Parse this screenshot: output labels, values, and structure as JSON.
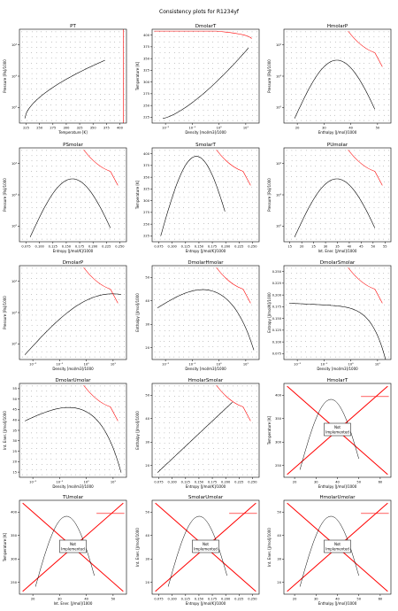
{
  "title": "Consistency plots for R1234yf",
  "not_implemented_text": [
    "Not",
    "Implemented"
  ],
  "colors": {
    "axis": "#000000",
    "data": "#000000",
    "saturation": "#000000",
    "boundary": "#ff0000",
    "cross": "#ff0000"
  },
  "chart_data": [
    {
      "type": "scatter",
      "title": "PT",
      "xlabel": "Temperature [K]",
      "ylabel": "Pressure [Pa]/1000",
      "xticks": [
        "225",
        "250",
        "275",
        "300",
        "325",
        "350",
        "375",
        "400"
      ],
      "yticks": [
        "10²",
        "10³",
        "10⁴"
      ],
      "ylog": true,
      "implemented": true,
      "series": [
        "grid points",
        "saturation curve",
        "boundary"
      ]
    },
    {
      "type": "scatter",
      "title": "DmolarT",
      "xlabel": "Density [mol/m3]/1000",
      "ylabel": "Temperature [K]",
      "xticks": [
        "10⁻²",
        "10⁻¹",
        "10⁰",
        "10¹"
      ],
      "yticks": [
        "225",
        "250",
        "275",
        "300",
        "325",
        "350",
        "375",
        "400"
      ],
      "xlog": true,
      "implemented": true,
      "series": [
        "grid points",
        "saturation curve",
        "boundary"
      ]
    },
    {
      "type": "scatter",
      "title": "HmolarP",
      "xlabel": "Enthalpy [J/mol]/1000",
      "ylabel": "Pressure [Pa]/1000",
      "xticks": [
        "20",
        "30",
        "40",
        "50"
      ],
      "yticks": [
        "10²",
        "10³",
        "10⁴"
      ],
      "ylog": true,
      "implemented": true,
      "series": [
        "grid points",
        "saturation curve",
        "boundary"
      ]
    },
    {
      "type": "scatter",
      "title": "PSmolar",
      "xlabel": "Entropy [J/mol/K]/1000",
      "ylabel": "Pressure [Pa]/1000",
      "xticks": [
        "0.075",
        "0.100",
        "0.125",
        "0.150",
        "0.175",
        "0.200",
        "0.225",
        "0.250"
      ],
      "yticks": [
        "10²",
        "10³",
        "10⁴"
      ],
      "ylog": true,
      "implemented": true,
      "series": [
        "grid points",
        "saturation curve",
        "boundary"
      ]
    },
    {
      "type": "scatter",
      "title": "SmolarT",
      "xlabel": "Entropy [J/mol/K]/1000",
      "ylabel": "Temperature [K]",
      "xticks": [
        "0.075",
        "0.100",
        "0.125",
        "0.150",
        "0.175",
        "0.200",
        "0.225",
        "0.250"
      ],
      "yticks": [
        "225",
        "250",
        "275",
        "300",
        "325",
        "350",
        "375",
        "400"
      ],
      "implemented": true,
      "series": [
        "grid points",
        "saturation curve",
        "boundary"
      ]
    },
    {
      "type": "scatter",
      "title": "PUmolar",
      "xlabel": "Int. Ener. [J/mol]/1000",
      "ylabel": "Pressure [Pa]/1000",
      "xticks": [
        "15",
        "20",
        "25",
        "30",
        "35",
        "40",
        "45",
        "50",
        "55"
      ],
      "yticks": [
        "10²",
        "10³",
        "10⁴"
      ],
      "ylog": true,
      "implemented": true,
      "series": [
        "grid points",
        "saturation curve",
        "boundary"
      ]
    },
    {
      "type": "scatter",
      "title": "DmolarP",
      "xlabel": "Density [mol/m3]/1000",
      "ylabel": "Pressure [Pa]/1000",
      "xticks": [
        "10⁻²",
        "10⁻¹",
        "10⁰",
        "10¹"
      ],
      "yticks": [
        "10²",
        "10³",
        "10⁴"
      ],
      "xlog": true,
      "ylog": true,
      "implemented": true,
      "series": [
        "grid points",
        "saturation curve",
        "boundary"
      ]
    },
    {
      "type": "scatter",
      "title": "DmolarHmolar",
      "xlabel": "Density [mol/m3]/1000",
      "ylabel": "Enthalpy [J/mol]/1000",
      "xticks": [
        "10⁻²",
        "10⁻¹",
        "10⁰",
        "10¹"
      ],
      "yticks": [
        "20",
        "30",
        "40",
        "50"
      ],
      "xlog": true,
      "implemented": true,
      "series": [
        "grid points",
        "saturation curve",
        "boundary"
      ]
    },
    {
      "type": "scatter",
      "title": "DmolarSmolar",
      "xlabel": "Density [mol/m3]/1000",
      "ylabel": "Entropy [J/mol/K]/1000",
      "xticks": [
        "10⁻²",
        "10⁻¹",
        "10⁰",
        "10¹"
      ],
      "yticks": [
        "0.075",
        "0.100",
        "0.125",
        "0.150",
        "0.175",
        "0.200",
        "0.225",
        "0.250"
      ],
      "xlog": true,
      "implemented": true,
      "series": [
        "grid points",
        "saturation curve",
        "boundary"
      ]
    },
    {
      "type": "scatter",
      "title": "DmolarUmolar",
      "xlabel": "Density [mol/m3]/1000",
      "ylabel": "Int. Ener. [J/mol]/1000",
      "xticks": [
        "10⁻²",
        "10⁻¹",
        "10⁰",
        "10¹"
      ],
      "yticks": [
        "15",
        "20",
        "25",
        "30",
        "35",
        "40",
        "45",
        "50",
        "55"
      ],
      "xlog": true,
      "implemented": true,
      "series": [
        "grid points",
        "saturation curve",
        "boundary"
      ]
    },
    {
      "type": "scatter",
      "title": "HmolarSmolar",
      "xlabel": "Entropy [J/mol/K]/1000",
      "ylabel": "Enthalpy [J/mol]/1000",
      "xticks": [
        "0.075",
        "0.100",
        "0.125",
        "0.150",
        "0.175",
        "0.200",
        "0.225",
        "0.250"
      ],
      "yticks": [
        "20",
        "30",
        "40",
        "50"
      ],
      "implemented": true,
      "series": [
        "grid points",
        "saturation curve",
        "boundary"
      ]
    },
    {
      "type": "line",
      "title": "HmolarT",
      "xlabel": "Enthalpy [J/mol]/1000",
      "ylabel": "Temperature [K]",
      "xticks": [
        "20",
        "30",
        "40",
        "50",
        "60"
      ],
      "yticks": [
        "250",
        "300",
        "350",
        "400"
      ],
      "implemented": false,
      "series": [
        "saturation curve",
        "boundary"
      ]
    },
    {
      "type": "line",
      "title": "TUmolar",
      "xlabel": "Int. Ener. [J/mol]/1000",
      "ylabel": "Temperature [K]",
      "xticks": [
        "20",
        "30",
        "40",
        "50"
      ],
      "yticks": [
        "250",
        "300",
        "350",
        "400"
      ],
      "implemented": false,
      "series": [
        "saturation curve",
        "boundary"
      ]
    },
    {
      "type": "line",
      "title": "SmolarUmolar",
      "xlabel": "Entropy [J/mol/K]/1000",
      "ylabel": "Int. Ener. [J/mol]/1000",
      "xticks": [
        "0.075",
        "0.100",
        "0.125",
        "0.150",
        "0.175",
        "0.200",
        "0.225",
        "0.250"
      ],
      "yticks": [
        "20",
        "30",
        "40",
        "50"
      ],
      "implemented": false,
      "series": [
        "saturation curve",
        "boundary"
      ]
    },
    {
      "type": "line",
      "title": "HmolarUmolar",
      "xlabel": "Enthalpy [J/mol]/1000",
      "ylabel": "Int. Ener. [J/mol]/1000",
      "xticks": [
        "20",
        "30",
        "40",
        "50",
        "60"
      ],
      "yticks": [
        "20",
        "30",
        "40",
        "50"
      ],
      "implemented": false,
      "series": [
        "saturation curve",
        "boundary"
      ]
    }
  ]
}
